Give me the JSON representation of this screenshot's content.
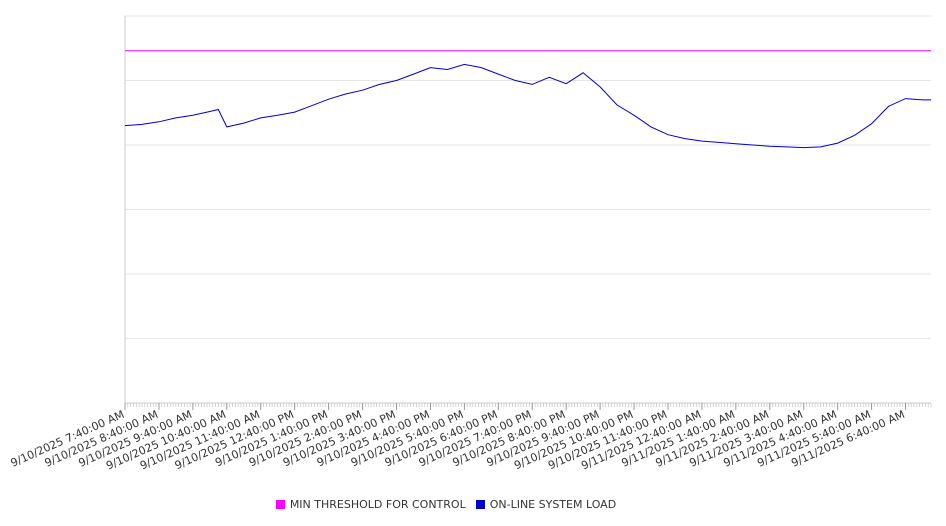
{
  "chart_data": {
    "type": "line",
    "title": "",
    "xlabel": "",
    "ylabel": "",
    "grid": true,
    "legend_position": "bottom",
    "ylim": [
      0,
      6
    ],
    "x_tick_labels": [
      "9/10/2025 7:40:00 AM",
      "9/10/2025 8:40:00 AM",
      "9/10/2025 9:40:00 AM",
      "9/10/2025 10:40:00 AM",
      "9/10/2025 11:40:00 AM",
      "9/10/2025 12:40:00 PM",
      "9/10/2025 1:40:00 PM",
      "9/10/2025 2:40:00 PM",
      "9/10/2025 3:40:00 PM",
      "9/10/2025 4:40:00 PM",
      "9/10/2025 5:40:00 PM",
      "9/10/2025 6:40:00 PM",
      "9/10/2025 7:40:00 PM",
      "9/10/2025 8:40:00 PM",
      "9/10/2025 9:40:00 PM",
      "9/10/2025 10:40:00 PM",
      "9/10/2025 11:40:00 PM",
      "9/11/2025 12:40:00 AM",
      "9/11/2025 1:40:00 AM",
      "9/11/2025 2:40:00 AM",
      "9/11/2025 3:40:00 AM",
      "9/11/2025 4:40:00 AM",
      "9/11/2025 5:40:00 AM",
      "9/11/2025 6:40:00 AM"
    ],
    "x_start": "9/10/2025 7:40:00 AM",
    "x_end": "9/11/2025 7:25:00 AM",
    "series": [
      {
        "name": "MIN THRESHOLD FOR CONTROL",
        "color": "#ff00ff",
        "x": [
          "9/10/2025 7:40:00 AM",
          "9/11/2025 7:25:00 AM"
        ],
        "values": [
          5.46,
          5.46
        ]
      },
      {
        "name": "ON-LINE SYSTEM LOAD",
        "color": "#0000cc",
        "x": [
          "9/10/2025 7:40:00 AM",
          "9/10/2025 8:10:00 AM",
          "9/10/2025 8:40:00 AM",
          "9/10/2025 9:10:00 AM",
          "9/10/2025 9:40:00 AM",
          "9/10/2025 10:10:00 AM",
          "9/10/2025 10:25:00 AM",
          "9/10/2025 10:40:00 AM",
          "9/10/2025 11:10:00 AM",
          "9/10/2025 11:40:00 AM",
          "9/10/2025 12:10:00 PM",
          "9/10/2025 12:40:00 PM",
          "9/10/2025 1:10:00 PM",
          "9/10/2025 1:40:00 PM",
          "9/10/2025 2:10:00 PM",
          "9/10/2025 2:40:00 PM",
          "9/10/2025 3:10:00 PM",
          "9/10/2025 3:40:00 PM",
          "9/10/2025 4:10:00 PM",
          "9/10/2025 4:40:00 PM",
          "9/10/2025 5:10:00 PM",
          "9/10/2025 5:40:00 PM",
          "9/10/2025 6:10:00 PM",
          "9/10/2025 6:40:00 PM",
          "9/10/2025 7:10:00 PM",
          "9/10/2025 7:40:00 PM",
          "9/10/2025 8:10:00 PM",
          "9/10/2025 8:40:00 PM",
          "9/10/2025 9:10:00 PM",
          "9/10/2025 9:40:00 PM",
          "9/10/2025 10:10:00 PM",
          "9/10/2025 10:40:00 PM",
          "9/10/2025 11:10:00 PM",
          "9/10/2025 11:40:00 PM",
          "9/11/2025 12:10:00 AM",
          "9/11/2025 12:40:00 AM",
          "9/11/2025 1:10:00 AM",
          "9/11/2025 1:40:00 AM",
          "9/11/2025 2:10:00 AM",
          "9/11/2025 2:40:00 AM",
          "9/11/2025 3:10:00 AM",
          "9/11/2025 3:40:00 AM",
          "9/11/2025 4:10:00 AM",
          "9/11/2025 4:40:00 AM",
          "9/11/2025 5:10:00 AM",
          "9/11/2025 5:40:00 AM",
          "9/11/2025 6:10:00 AM",
          "9/11/2025 6:40:00 AM",
          "9/11/2025 7:10:00 AM",
          "9/11/2025 7:25:00 AM"
        ],
        "values": [
          4.3,
          4.32,
          4.36,
          4.42,
          4.46,
          4.52,
          4.55,
          4.28,
          4.34,
          4.42,
          4.46,
          4.51,
          4.61,
          4.71,
          4.79,
          4.85,
          4.94,
          5.0,
          5.1,
          5.2,
          5.17,
          5.25,
          5.2,
          5.1,
          5.0,
          4.94,
          5.05,
          4.95,
          5.12,
          4.9,
          4.62,
          4.46,
          4.28,
          4.16,
          4.1,
          4.06,
          4.04,
          4.02,
          4.0,
          3.98,
          3.97,
          3.96,
          3.97,
          4.03,
          4.15,
          4.33,
          4.6,
          4.72,
          4.7,
          4.7
        ]
      }
    ]
  }
}
